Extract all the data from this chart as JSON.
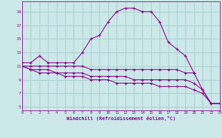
{
  "bg_color": "#cce8e8",
  "grid_color": "#a8cece",
  "line_color": "#880088",
  "x_ticks": [
    0,
    1,
    2,
    3,
    4,
    5,
    6,
    7,
    8,
    9,
    10,
    11,
    12,
    13,
    14,
    15,
    16,
    17,
    18,
    19,
    20,
    21,
    22,
    23
  ],
  "y_ticks": [
    5,
    7,
    9,
    11,
    13,
    15,
    17,
    19
  ],
  "xlim": [
    0,
    23
  ],
  "ylim": [
    4.5,
    20.5
  ],
  "xlabel": "Windchill (Refroidissement éolien,°C)",
  "curve1_x": [
    0,
    1,
    2,
    3,
    4,
    5,
    6,
    7,
    8,
    9,
    10,
    11,
    12,
    13,
    14,
    15,
    16,
    17,
    18,
    19,
    20
  ],
  "curve1_y": [
    11.5,
    11.5,
    12.5,
    11.5,
    11.5,
    11.5,
    11.5,
    13.0,
    15.0,
    15.5,
    17.5,
    19.0,
    19.5,
    19.5,
    19.0,
    19.0,
    17.5,
    14.5,
    13.5,
    12.5,
    10.0
  ],
  "curve2_x": [
    0,
    1,
    2,
    3,
    4,
    5,
    6,
    7,
    8,
    9,
    10,
    11,
    12,
    13,
    14,
    15,
    16,
    17,
    18,
    19,
    20,
    21,
    22,
    23
  ],
  "curve2_y": [
    11.0,
    11.0,
    11.0,
    11.0,
    11.0,
    11.0,
    11.0,
    11.0,
    10.5,
    10.5,
    10.5,
    10.5,
    10.5,
    10.5,
    10.5,
    10.5,
    10.5,
    10.5,
    10.5,
    10.0,
    10.0,
    7.5,
    5.5,
    5.5
  ],
  "curve3_x": [
    0,
    1,
    2,
    3,
    4,
    5,
    6,
    7,
    8,
    9,
    10,
    11,
    12,
    13,
    14,
    15,
    16,
    17,
    18,
    19,
    20,
    21,
    22,
    23
  ],
  "curve3_y": [
    11.0,
    10.5,
    10.5,
    10.5,
    10.0,
    10.0,
    10.0,
    10.0,
    9.5,
    9.5,
    9.5,
    9.5,
    9.5,
    9.0,
    9.0,
    9.0,
    9.0,
    9.0,
    9.0,
    9.0,
    8.5,
    7.5,
    5.5,
    5.5
  ],
  "curve4_x": [
    0,
    1,
    2,
    3,
    4,
    5,
    6,
    7,
    8,
    9,
    10,
    11,
    12,
    13,
    14,
    15,
    16,
    17,
    18,
    19,
    20,
    21,
    22,
    23
  ],
  "curve4_y": [
    11.0,
    10.5,
    10.0,
    10.0,
    10.0,
    9.5,
    9.5,
    9.5,
    9.0,
    9.0,
    9.0,
    8.5,
    8.5,
    8.5,
    8.5,
    8.5,
    8.0,
    8.0,
    8.0,
    8.0,
    7.5,
    7.0,
    5.5,
    5.5
  ]
}
